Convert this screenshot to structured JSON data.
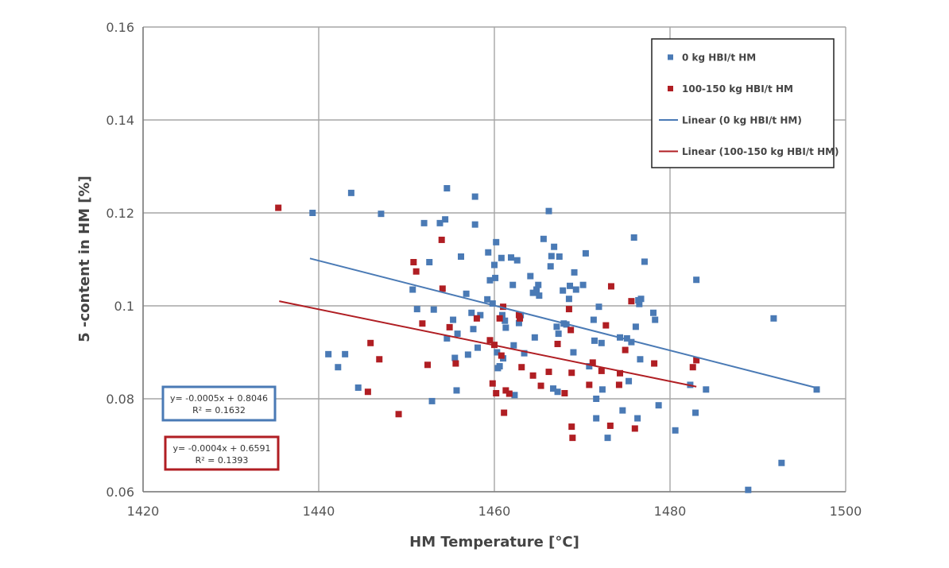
{
  "chart_data": {
    "type": "scatter",
    "xlabel": "HM Temperature [°C]",
    "ylabel": "5 -content in HM [%]",
    "xlim": [
      1420,
      1500
    ],
    "ylim": [
      0.06,
      0.16
    ],
    "x_ticks": [
      "1420",
      "1440",
      "1460",
      "1480",
      "1500"
    ],
    "y_ticks": [
      "0.06",
      "0.08",
      "0.1",
      "0.12",
      "0.14",
      "0.16"
    ],
    "grid": true,
    "legend_position": "top-right",
    "series": [
      {
        "name": "0 kg HBI/t HM",
        "color": "#4a7ab5",
        "marker": "square",
        "points": [
          [
            1439.3,
            0.12
          ],
          [
            1443.7,
            0.1243
          ],
          [
            1447.1,
            0.1198
          ],
          [
            1441.1,
            0.0896
          ],
          [
            1443.0,
            0.0896
          ],
          [
            1442.2,
            0.0868
          ],
          [
            1444.5,
            0.0824
          ],
          [
            1452.9,
            0.0795
          ],
          [
            1450.7,
            0.1035
          ],
          [
            1451.2,
            0.0993
          ],
          [
            1452.0,
            0.1178
          ],
          [
            1452.6,
            0.1094
          ],
          [
            1453.1,
            0.0992
          ],
          [
            1453.8,
            0.1178
          ],
          [
            1454.4,
            0.1186
          ],
          [
            1454.6,
            0.1253
          ],
          [
            1454.6,
            0.093
          ],
          [
            1455.3,
            0.097
          ],
          [
            1455.5,
            0.0888
          ],
          [
            1455.7,
            0.0818
          ],
          [
            1455.8,
            0.094
          ],
          [
            1456.2,
            0.1106
          ],
          [
            1456.8,
            0.1026
          ],
          [
            1457.0,
            0.0895
          ],
          [
            1457.4,
            0.0985
          ],
          [
            1457.6,
            0.095
          ],
          [
            1457.8,
            0.1175
          ],
          [
            1457.8,
            0.1235
          ],
          [
            1458.1,
            0.091
          ],
          [
            1458.4,
            0.098
          ],
          [
            1459.2,
            0.1014
          ],
          [
            1459.3,
            0.1115
          ],
          [
            1459.5,
            0.1055
          ],
          [
            1459.8,
            0.1005
          ],
          [
            1460.0,
            0.1088
          ],
          [
            1460.1,
            0.106
          ],
          [
            1460.2,
            0.1137
          ],
          [
            1460.3,
            0.09
          ],
          [
            1460.4,
            0.0866
          ],
          [
            1460.6,
            0.087
          ],
          [
            1460.8,
            0.1103
          ],
          [
            1460.9,
            0.098
          ],
          [
            1461.0,
            0.0887
          ],
          [
            1461.2,
            0.0968
          ],
          [
            1461.3,
            0.0953
          ],
          [
            1461.9,
            0.1104
          ],
          [
            1462.1,
            0.1045
          ],
          [
            1462.2,
            0.0915
          ],
          [
            1462.3,
            0.0808
          ],
          [
            1462.6,
            0.1098
          ],
          [
            1462.8,
            0.0963
          ],
          [
            1463.0,
            0.098
          ],
          [
            1463.4,
            0.0898
          ],
          [
            1464.1,
            0.1064
          ],
          [
            1464.4,
            0.1028
          ],
          [
            1464.6,
            0.0932
          ],
          [
            1464.8,
            0.1035
          ],
          [
            1465.0,
            0.1045
          ],
          [
            1465.1,
            0.1022
          ],
          [
            1465.6,
            0.1144
          ],
          [
            1466.2,
            0.1204
          ],
          [
            1466.4,
            0.1085
          ],
          [
            1466.5,
            0.1107
          ],
          [
            1466.7,
            0.0822
          ],
          [
            1466.8,
            0.1127
          ],
          [
            1467.1,
            0.0955
          ],
          [
            1467.2,
            0.0815
          ],
          [
            1467.3,
            0.094
          ],
          [
            1467.4,
            0.1106
          ],
          [
            1467.8,
            0.1033
          ],
          [
            1467.9,
            0.0962
          ],
          [
            1468.2,
            0.096
          ],
          [
            1468.5,
            0.1015
          ],
          [
            1468.6,
            0.1043
          ],
          [
            1469.0,
            0.09
          ],
          [
            1469.1,
            0.1072
          ],
          [
            1469.3,
            0.1035
          ],
          [
            1470.1,
            0.1045
          ],
          [
            1470.4,
            0.1113
          ],
          [
            1470.8,
            0.087
          ],
          [
            1471.3,
            0.097
          ],
          [
            1471.4,
            0.0925
          ],
          [
            1471.6,
            0.08
          ],
          [
            1471.6,
            0.0758
          ],
          [
            1471.9,
            0.0998
          ],
          [
            1472.2,
            0.092
          ],
          [
            1472.3,
            0.082
          ],
          [
            1472.9,
            0.0716
          ],
          [
            1474.3,
            0.0932
          ],
          [
            1474.6,
            0.0775
          ],
          [
            1475.1,
            0.093
          ],
          [
            1475.3,
            0.0838
          ],
          [
            1475.6,
            0.0922
          ],
          [
            1475.9,
            0.1147
          ],
          [
            1476.1,
            0.0955
          ],
          [
            1476.3,
            0.0758
          ],
          [
            1476.4,
            0.1012
          ],
          [
            1476.5,
            0.1004
          ],
          [
            1476.6,
            0.0885
          ],
          [
            1476.7,
            0.1015
          ],
          [
            1477.1,
            0.1095
          ],
          [
            1478.1,
            0.0985
          ],
          [
            1478.3,
            0.097
          ],
          [
            1478.7,
            0.0786
          ],
          [
            1480.6,
            0.0732
          ],
          [
            1482.3,
            0.083
          ],
          [
            1482.9,
            0.077
          ],
          [
            1483.0,
            0.1056
          ],
          [
            1484.1,
            0.082
          ],
          [
            1488.9,
            0.0604
          ],
          [
            1491.8,
            0.0973
          ],
          [
            1492.7,
            0.0662
          ],
          [
            1496.7,
            0.082
          ]
        ]
      },
      {
        "name": "100-150 kg HBI/t HM",
        "color": "#b01e23",
        "marker": "square",
        "points": [
          [
            1435.4,
            0.1211
          ],
          [
            1445.6,
            0.0815
          ],
          [
            1445.9,
            0.092
          ],
          [
            1446.9,
            0.0885
          ],
          [
            1449.1,
            0.0767
          ],
          [
            1450.8,
            0.1094
          ],
          [
            1451.1,
            0.1074
          ],
          [
            1451.8,
            0.0962
          ],
          [
            1452.4,
            0.0873
          ],
          [
            1454.0,
            0.1142
          ],
          [
            1454.1,
            0.1037
          ],
          [
            1454.9,
            0.0954
          ],
          [
            1455.6,
            0.0876
          ],
          [
            1458.0,
            0.0973
          ],
          [
            1459.5,
            0.0926
          ],
          [
            1459.8,
            0.0833
          ],
          [
            1460.0,
            0.0916
          ],
          [
            1460.2,
            0.0812
          ],
          [
            1460.6,
            0.0973
          ],
          [
            1460.8,
            0.0893
          ],
          [
            1461.0,
            0.0998
          ],
          [
            1461.1,
            0.077
          ],
          [
            1461.3,
            0.0818
          ],
          [
            1461.7,
            0.0811
          ],
          [
            1462.8,
            0.098
          ],
          [
            1462.9,
            0.0973
          ],
          [
            1463.1,
            0.0868
          ],
          [
            1464.4,
            0.085
          ],
          [
            1465.3,
            0.0828
          ],
          [
            1466.2,
            0.0858
          ],
          [
            1467.2,
            0.0918
          ],
          [
            1468.0,
            0.0812
          ],
          [
            1468.5,
            0.0993
          ],
          [
            1468.7,
            0.0948
          ],
          [
            1468.8,
            0.0856
          ],
          [
            1468.8,
            0.074
          ],
          [
            1468.9,
            0.0716
          ],
          [
            1470.8,
            0.083
          ],
          [
            1471.2,
            0.0878
          ],
          [
            1472.2,
            0.086
          ],
          [
            1472.7,
            0.0958
          ],
          [
            1473.2,
            0.0742
          ],
          [
            1473.3,
            0.1042
          ],
          [
            1474.2,
            0.083
          ],
          [
            1474.3,
            0.0855
          ],
          [
            1474.9,
            0.0905
          ],
          [
            1475.6,
            0.101
          ],
          [
            1476.0,
            0.0736
          ],
          [
            1478.2,
            0.0876
          ],
          [
            1482.6,
            0.0868
          ],
          [
            1483.0,
            0.0883
          ]
        ]
      }
    ],
    "trendlines": [
      {
        "name": "Linear (0 kg HBI/t HM)",
        "color": "#4a7ab5",
        "x": [
          1439,
          1497
        ],
        "y": [
          0.1102,
          0.0822
        ],
        "equation": "y= -0.0005x + 0.8046",
        "r2": "R² = 0.1632"
      },
      {
        "name": "Linear (100-150 kg HBI/t HM)",
        "color": "#b01e23",
        "x": [
          1435.5,
          1483
        ],
        "y": [
          0.101,
          0.0826
        ],
        "equation": "y= -0.0004x + 0.6591",
        "r2": "R² = 0.1393"
      }
    ],
    "legend": [
      {
        "label": "0 kg HBI/t HM",
        "kind": "marker",
        "color": "#4a7ab5"
      },
      {
        "label": "100-150 kg HBI/t HM",
        "kind": "marker",
        "color": "#b01e23"
      },
      {
        "label": "Linear (0 kg HBI/t HM)",
        "kind": "line",
        "color": "#4a7ab5"
      },
      {
        "label": "Linear (100-150 kg HBI/t HM)",
        "kind": "line",
        "color": "#b01e23"
      }
    ]
  }
}
